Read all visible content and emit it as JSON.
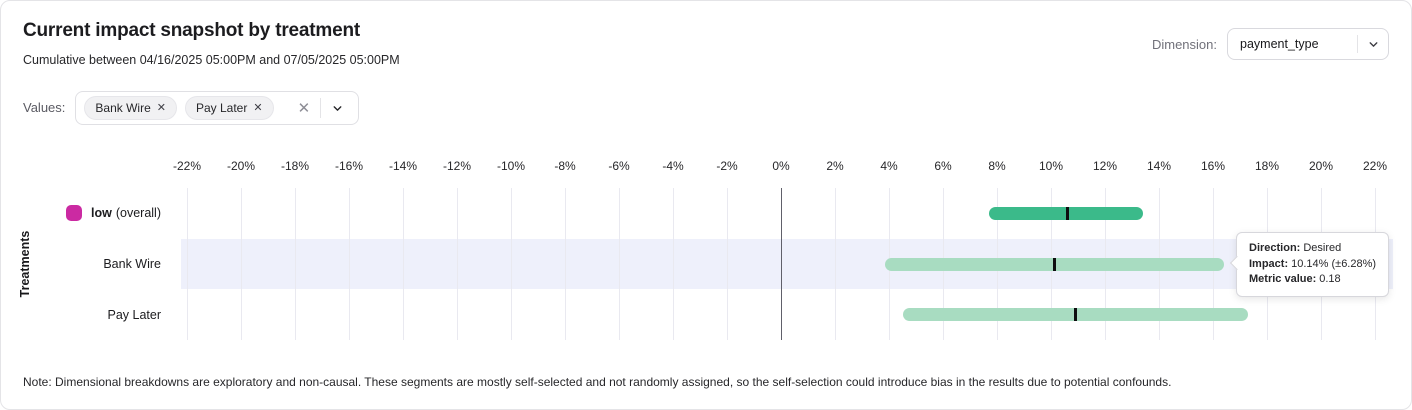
{
  "header": {
    "title": "Current impact snapshot by treatment",
    "subtitle": "Cumulative between 04/16/2025 05:00PM and 07/05/2025 05:00PM",
    "dimension_label": "Dimension:",
    "dimension_value": "payment_type"
  },
  "filters": {
    "label": "Values:",
    "chips": [
      {
        "label": "Bank Wire",
        "remove_icon": "✕"
      },
      {
        "label": "Pay Later",
        "remove_icon": "✕"
      }
    ],
    "clear_icon": "✕"
  },
  "chart_data": {
    "type": "bar",
    "subtype": "horizontal-interval-with-point-estimate",
    "title": "Current impact snapshot by treatment",
    "xlabel": "",
    "ylabel": "Treatments",
    "axis": {
      "min": -22,
      "max": 22,
      "step": 2,
      "unit": "%",
      "zero_line": true,
      "grid": true
    },
    "categories": [
      "low (overall)",
      "Bank Wire",
      "Pay Later"
    ],
    "rows": [
      {
        "label": "low",
        "label_suffix": "(overall)",
        "swatch_color": "#cb2aa2",
        "low": 7.7,
        "center": 10.6,
        "high": 13.4,
        "bar_color": "#3bba8a",
        "highlighted": false
      },
      {
        "label": "Bank Wire",
        "label_suffix": "",
        "swatch_color": "",
        "low": 3.86,
        "center": 10.14,
        "high": 16.42,
        "bar_color": "#a8dcc1",
        "highlighted": true
      },
      {
        "label": "Pay Later",
        "label_suffix": "",
        "swatch_color": "",
        "low": 4.5,
        "center": 10.9,
        "high": 17.3,
        "bar_color": "#a8dcc1",
        "highlighted": false
      }
    ],
    "highlight_band_color": "#eef0fb",
    "point_marker_color": "#0e0e10"
  },
  "tooltip": {
    "direction_label": "Direction:",
    "direction_value": "Desired",
    "impact_label": "Impact:",
    "impact_value": "10.14% (±6.28%)",
    "metric_label": "Metric value:",
    "metric_value": "0.18"
  },
  "note": "Note: Dimensional breakdowns are exploratory and non-causal. These segments are mostly self-selected and not randomly assigned, so the self-selection could introduce bias in the results due to potential confounds."
}
